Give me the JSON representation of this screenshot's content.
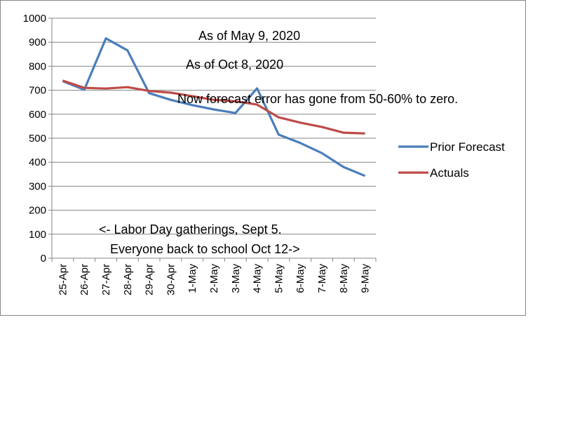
{
  "chart_data": {
    "type": "line",
    "categories": [
      "25-Apr",
      "26-Apr",
      "27-Apr",
      "28-Apr",
      "29-Apr",
      "30-Apr",
      "1-May",
      "2-May",
      "3-May",
      "4-May",
      "5-May",
      "6-May",
      "7-May",
      "8-May",
      "9-May"
    ],
    "series": [
      {
        "name": "Prior Forecast",
        "color": "#4a7ebb",
        "values": [
          738,
          702,
          916,
          866,
          688,
          660,
          638,
          620,
          605,
          708,
          515,
          480,
          438,
          380,
          343
        ]
      },
      {
        "name": "Actuals",
        "color": "#be4b48",
        "values": [
          740,
          710,
          707,
          713,
          697,
          690,
          675,
          660,
          654,
          640,
          587,
          565,
          547,
          523,
          520
        ]
      }
    ],
    "ylim": [
      0,
      1000
    ],
    "yticks": [
      0,
      100,
      200,
      300,
      400,
      500,
      600,
      700,
      800,
      900,
      1000
    ],
    "ytick_labels": [
      "0",
      "100",
      "200",
      "300",
      "400",
      "500",
      "600",
      "700",
      "800",
      "900",
      "1000"
    ],
    "grid": true,
    "legend": "right",
    "annotations": [
      {
        "text": "As of May 9, 2020"
      },
      {
        "text": "As of Oct 8, 2020"
      },
      {
        "text": "Now forecast error has gone from 50-60% to zero."
      },
      {
        "text": "<- Labor Day gatherings, Sept 5."
      },
      {
        "text": "Everyone back to school Oct 12->"
      }
    ]
  }
}
